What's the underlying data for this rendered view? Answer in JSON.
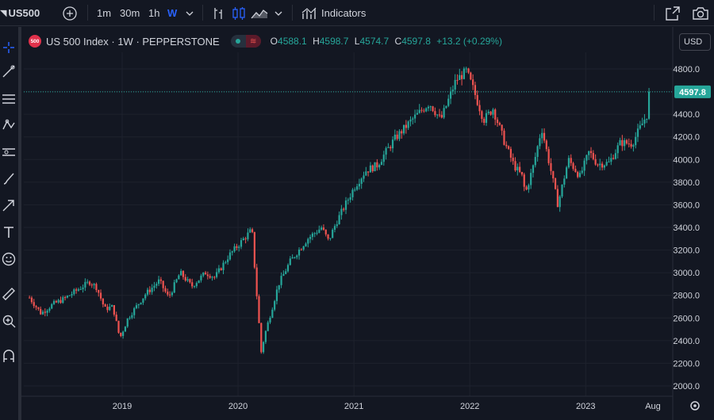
{
  "toolbar": {
    "symbol": "US500",
    "intervals": [
      "1m",
      "30m",
      "1h",
      "W"
    ],
    "indicators_label": "Indicators"
  },
  "legend": {
    "badge": "500",
    "title": "US 500 Index · 1W · PEPPERSTONE",
    "open_label": "O",
    "open": "4588.1",
    "high_label": "H",
    "high": "4598.7",
    "low_label": "L",
    "low": "4574.7",
    "close_label": "C",
    "close": "4597.8",
    "change": "+13.2 (+0.29%)"
  },
  "currency": "USD",
  "colors": {
    "up": "#26a69a",
    "down": "#ef5350",
    "background": "#131722",
    "grid": "#1e222d",
    "text": "#d1d4dc"
  },
  "chart_data": {
    "type": "candlestick",
    "title": "US 500 Index · 1W · PEPPERSTONE",
    "timeframe": "1W",
    "last_price": 4597.8,
    "ylim": [
      1900,
      4900
    ],
    "y_ticks": [
      2000,
      2200,
      2400,
      2600,
      2800,
      3000,
      3200,
      3400,
      3600,
      3800,
      4000,
      4200,
      4400,
      4600,
      4800
    ],
    "y_tick_labels": [
      "2000.0",
      "2200.0",
      "2400.0",
      "2600.0",
      "2800.0",
      "3000.0",
      "3200.0",
      "3400.0",
      "3600.0",
      "3800.0",
      "4000.0",
      "4200.0",
      "4400.0",
      "4800.0"
    ],
    "x_ticks": [
      "2019",
      "2020",
      "2021",
      "2022",
      "2023",
      "Aug"
    ],
    "x_tick_dates": [
      2019.0,
      2020.0,
      2021.0,
      2022.0,
      2023.0,
      2023.58
    ],
    "xlim": [
      2018.17,
      2023.86
    ],
    "weekly_closes": [
      [
        2018.2,
        2780
      ],
      [
        2018.3,
        2640
      ],
      [
        2018.4,
        2720
      ],
      [
        2018.5,
        2770
      ],
      [
        2018.6,
        2840
      ],
      [
        2018.72,
        2920
      ],
      [
        2018.78,
        2870
      ],
      [
        2018.85,
        2680
      ],
      [
        2018.92,
        2700
      ],
      [
        2018.98,
        2420
      ],
      [
        2019.05,
        2600
      ],
      [
        2019.2,
        2810
      ],
      [
        2019.32,
        2930
      ],
      [
        2019.4,
        2780
      ],
      [
        2019.5,
        3000
      ],
      [
        2019.6,
        2880
      ],
      [
        2019.72,
        3000
      ],
      [
        2019.8,
        2960
      ],
      [
        2019.92,
        3150
      ],
      [
        2020.05,
        3300
      ],
      [
        2020.12,
        3380
      ],
      [
        2020.15,
        2950
      ],
      [
        2020.2,
        2300
      ],
      [
        2020.23,
        2450
      ],
      [
        2020.35,
        2900
      ],
      [
        2020.45,
        3100
      ],
      [
        2020.6,
        3300
      ],
      [
        2020.72,
        3400
      ],
      [
        2020.78,
        3280
      ],
      [
        2020.85,
        3450
      ],
      [
        2021.0,
        3750
      ],
      [
        2021.1,
        3900
      ],
      [
        2021.2,
        3950
      ],
      [
        2021.35,
        4180
      ],
      [
        2021.5,
        4350
      ],
      [
        2021.65,
        4500
      ],
      [
        2021.75,
        4350
      ],
      [
        2021.88,
        4700
      ],
      [
        2021.97,
        4780
      ],
      [
        2022.02,
        4650
      ],
      [
        2022.12,
        4350
      ],
      [
        2022.2,
        4450
      ],
      [
        2022.3,
        4150
      ],
      [
        2022.38,
        3950
      ],
      [
        2022.45,
        3850
      ],
      [
        2022.48,
        3700
      ],
      [
        2022.55,
        3950
      ],
      [
        2022.62,
        4280
      ],
      [
        2022.7,
        3900
      ],
      [
        2022.76,
        3600
      ],
      [
        2022.85,
        4000
      ],
      [
        2022.95,
        3850
      ],
      [
        2023.03,
        4070
      ],
      [
        2023.1,
        3960
      ],
      [
        2023.2,
        3970
      ],
      [
        2023.3,
        4150
      ],
      [
        2023.4,
        4140
      ],
      [
        2023.48,
        4300
      ],
      [
        2023.53,
        4400
      ],
      [
        2023.56,
        4597.8
      ]
    ]
  }
}
